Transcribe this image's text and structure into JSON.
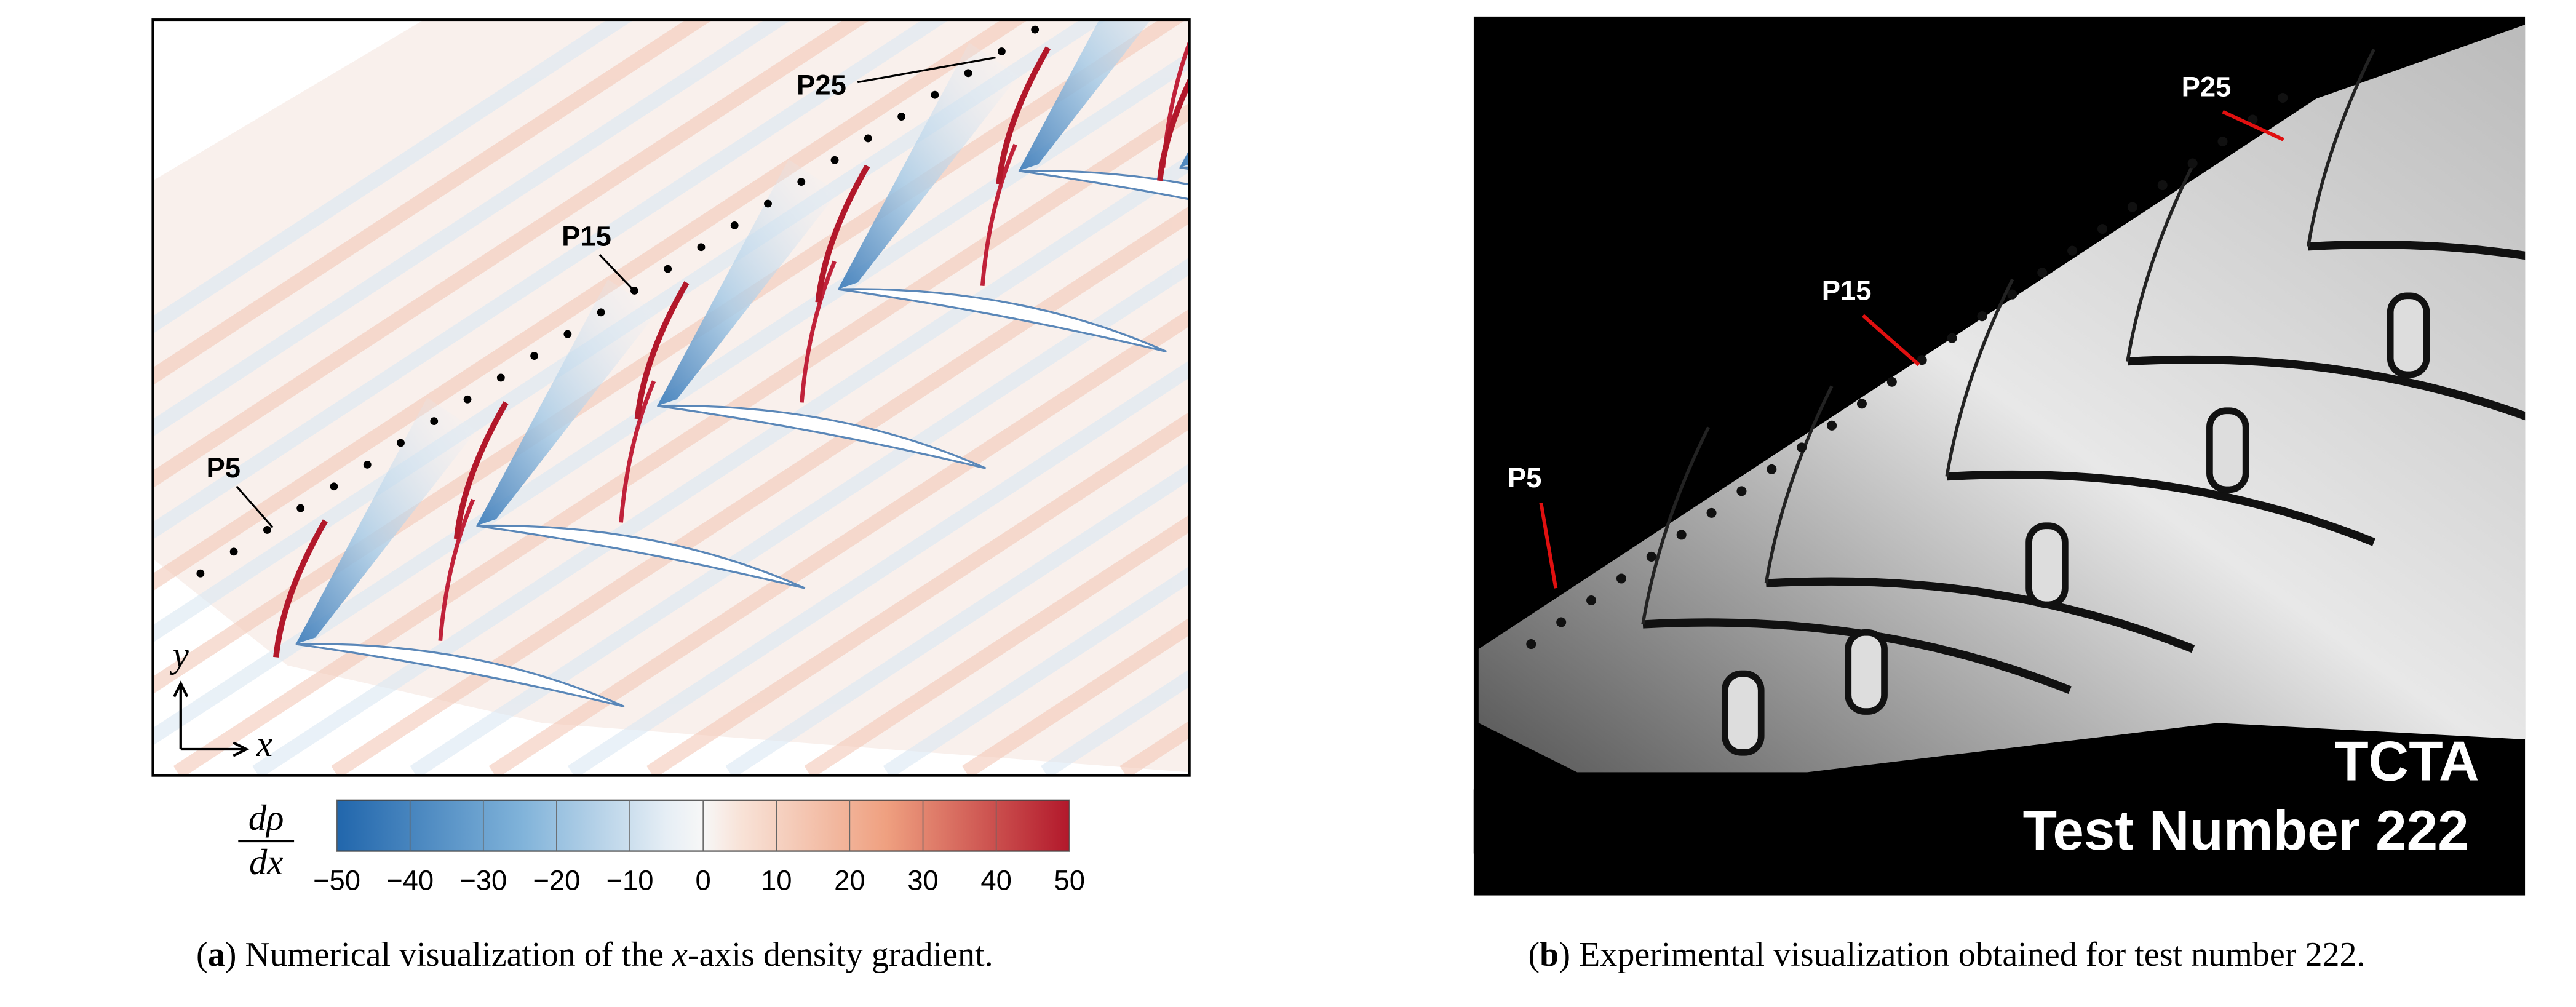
{
  "panel_a": {
    "labels": [
      "P5",
      "P15",
      "P25"
    ],
    "axis_y": "y",
    "axis_x": "x",
    "colorbar": {
      "label_num": "dρ",
      "label_den": "dx",
      "ticks": [
        {
          "value": -50,
          "label": "−50"
        },
        {
          "value": -40,
          "label": "−40"
        },
        {
          "value": -30,
          "label": "−30"
        },
        {
          "value": -20,
          "label": "−20"
        },
        {
          "value": -10,
          "label": "−10"
        },
        0,
        10,
        20,
        30,
        40,
        50
      ]
    },
    "caption": [
      "(",
      "a",
      ") Numerical visualization of the ",
      "x",
      "-axis density gradient."
    ]
  },
  "panel_b": {
    "labels": [
      "P5",
      "P15",
      "P25"
    ],
    "overlay": [
      "TCTA",
      "Test Number 222"
    ],
    "caption": [
      "(",
      "b",
      ") Experimental visualization obtained for test number 222."
    ]
  }
}
